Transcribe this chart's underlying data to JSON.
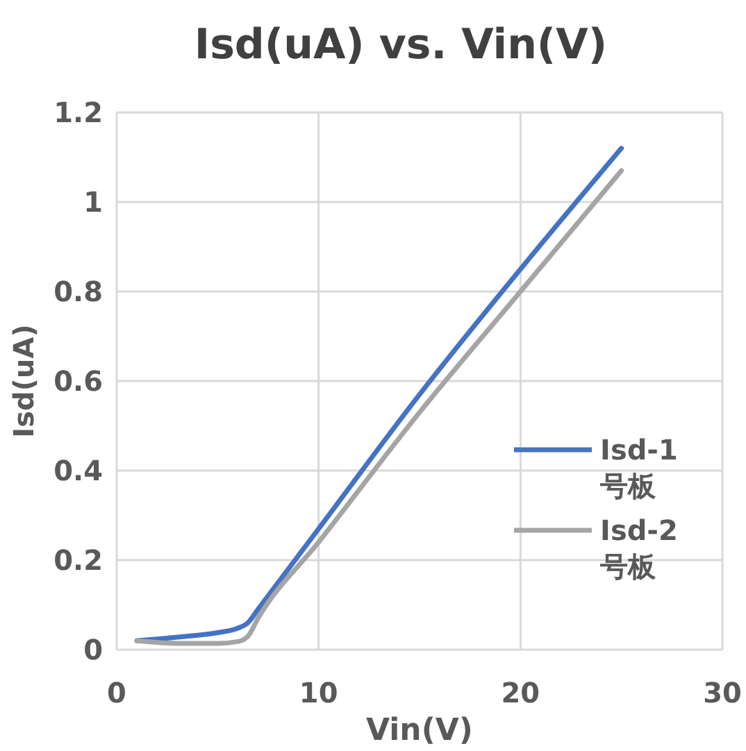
{
  "chart_data": {
    "type": "line",
    "title": "Isd(uA) vs. Vin(V)",
    "xlabel": "Vin(V)",
    "ylabel": "Isd(uA)",
    "xlim": [
      0,
      30
    ],
    "xticks": [
      0,
      10,
      20,
      30
    ],
    "ylim": [
      0,
      1.2
    ],
    "yticks": [
      0,
      0.2,
      0.4,
      0.6,
      0.8,
      1,
      1.2
    ],
    "grid": true,
    "legend": "right",
    "marker": "none",
    "line_style": "solid",
    "x": [
      1,
      3,
      5,
      6,
      6.5,
      7,
      10,
      15,
      20,
      25
    ],
    "series": [
      {
        "name": "Isd-1号板",
        "color": "#4472c4",
        "values": [
          0.02,
          0.028,
          0.038,
          0.048,
          0.06,
          0.09,
          0.27,
          0.57,
          0.85,
          1.12
        ]
      },
      {
        "name": "Isd-2号板",
        "color": "#a5a5a5",
        "values": [
          0.02,
          0.014,
          0.014,
          0.018,
          0.03,
          0.07,
          0.24,
          0.53,
          0.8,
          1.07
        ]
      }
    ]
  }
}
